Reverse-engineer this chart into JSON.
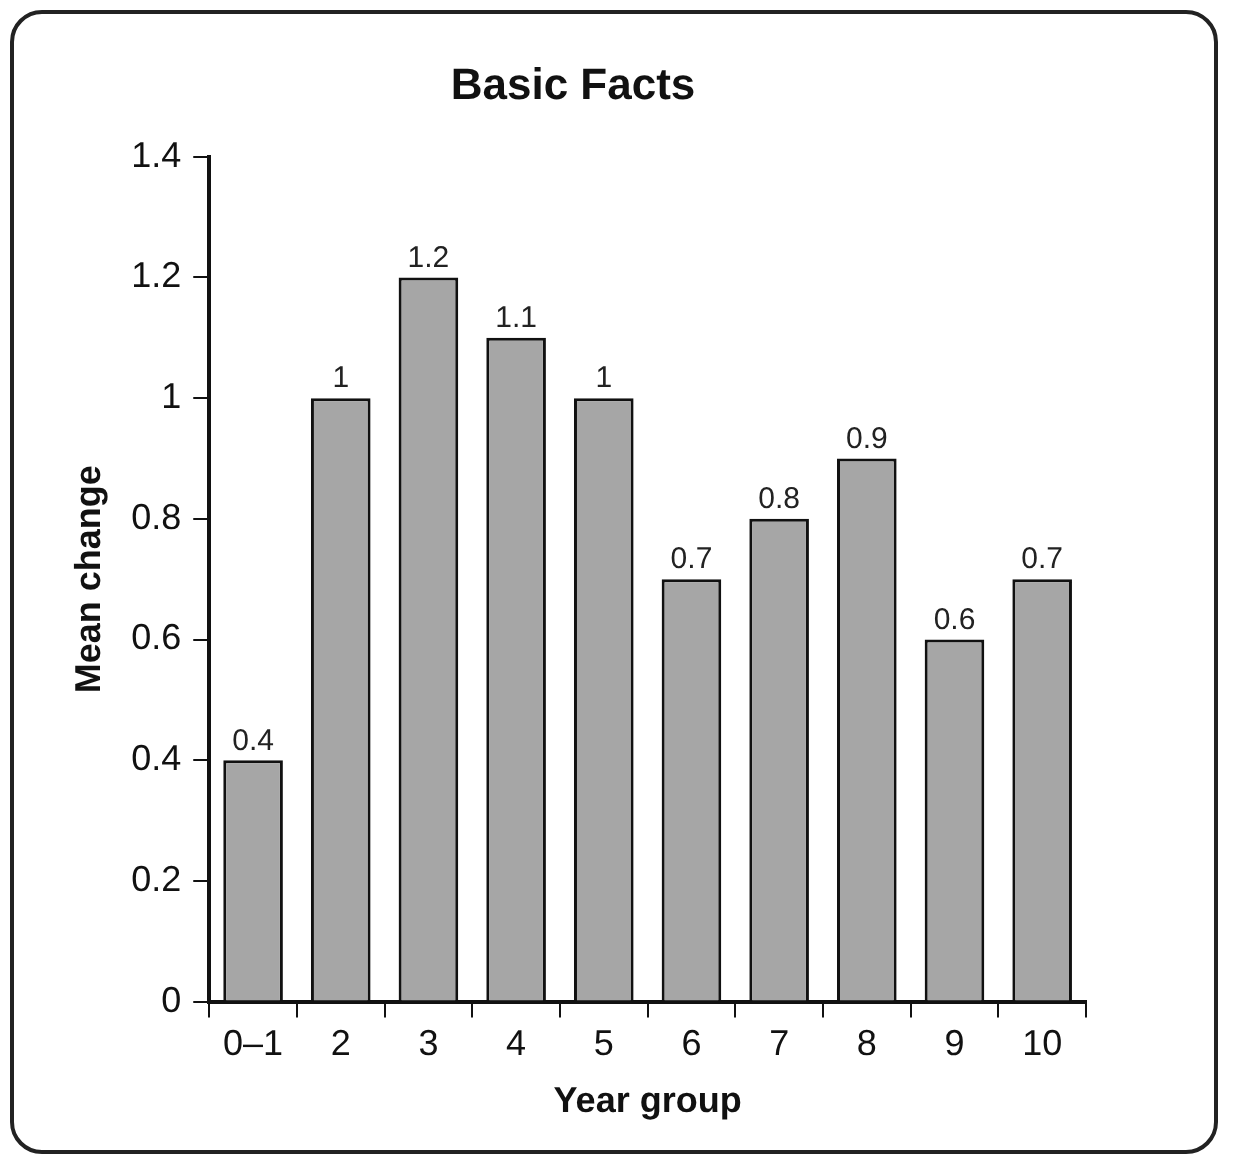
{
  "chart_data": {
    "type": "bar",
    "title": "Basic Facts",
    "xlabel": "Year group",
    "ylabel": "Mean change",
    "categories": [
      "0–1",
      "2",
      "3",
      "4",
      "5",
      "6",
      "7",
      "8",
      "9",
      "10"
    ],
    "values": [
      0.4,
      1,
      1.2,
      1.1,
      1,
      0.7,
      0.8,
      0.9,
      0.6,
      0.7
    ],
    "color": "#a6a6a6",
    "ylim": [
      0,
      1.4
    ],
    "yticks": [
      0,
      0.2,
      0.4,
      0.6,
      0.8,
      1,
      1.2,
      1.4
    ],
    "data_labels": true
  }
}
